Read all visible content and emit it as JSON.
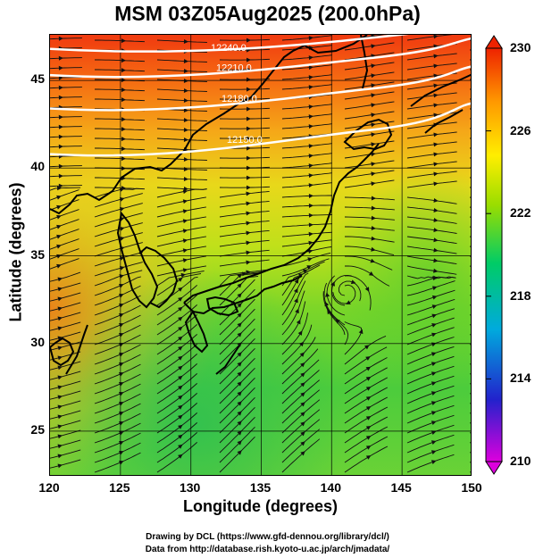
{
  "title": "MSM 03Z05Aug2025 (200.0hPa)",
  "x_axis": {
    "label": "Longitude (degrees)",
    "ticks": [
      "120",
      "125",
      "130",
      "135",
      "140",
      "145",
      "150"
    ],
    "range": [
      120,
      150
    ]
  },
  "y_axis": {
    "label": "Latitude  (degrees)",
    "ticks": [
      "25",
      "30",
      "35",
      "40",
      "45"
    ],
    "range": [
      22.4,
      47.6
    ]
  },
  "colorbar": {
    "ticks": [
      "230",
      "226",
      "222",
      "218",
      "214",
      "210"
    ],
    "range": [
      210,
      230
    ],
    "colors": [
      "#dd00dd",
      "#2222cc",
      "#00aadd",
      "#00cc66",
      "#99dd00",
      "#ffee00",
      "#ff9900",
      "#ee2200"
    ]
  },
  "contour_labels": [
    "12240.0",
    "12210.0",
    "12180.0",
    "12150.0"
  ],
  "contours": [
    {
      "label": "12240.0",
      "lat_start": 46.8,
      "lat_end": 48.0
    },
    {
      "label": "12210.0",
      "lat_start": 45.3,
      "lat_end": 47.2
    },
    {
      "label": "12180.0",
      "lat_start": 43.4,
      "lat_end": 45.6
    },
    {
      "label": "12150.0",
      "lat_start": 40.8,
      "lat_end": 43.5
    }
  ],
  "credits": [
    "Drawing by DCL (https://www.gfd-dennou.org/library/dcl/)",
    "Data from http://database.rish.kyoto-u.ac.jp/arch/jmadata/"
  ]
}
